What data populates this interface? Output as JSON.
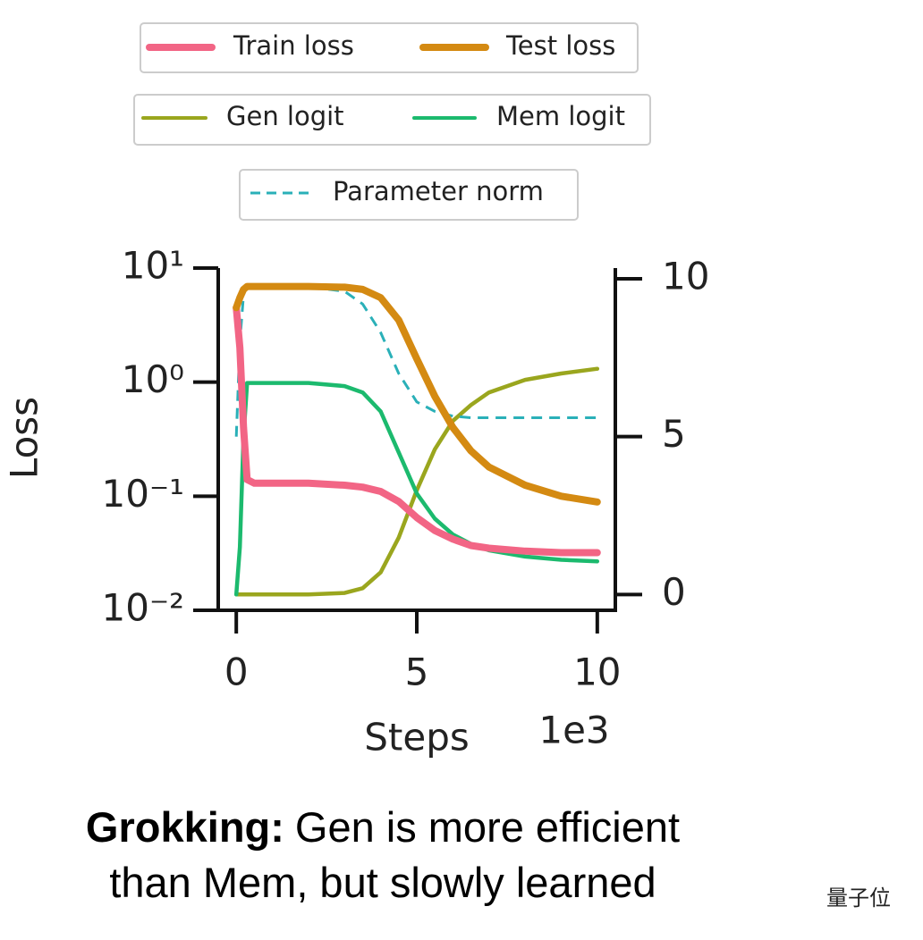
{
  "chart_data": {
    "type": "line",
    "x": [
      0,
      0.1,
      0.2,
      0.3,
      0.5,
      1,
      2,
      3,
      3.5,
      4,
      4.5,
      5,
      5.5,
      6,
      6.5,
      7,
      8,
      9,
      10
    ],
    "series": [
      {
        "name": "Train loss",
        "color": "#f26585",
        "linestyle": "solid",
        "values": [
          4.5,
          2,
          0.4,
          0.14,
          0.13,
          0.13,
          0.13,
          0.125,
          0.12,
          0.11,
          0.09,
          0.065,
          0.05,
          0.042,
          0.037,
          0.035,
          0.033,
          0.032,
          0.032
        ]
      },
      {
        "name": "Test loss",
        "color": "#d48a12",
        "linestyle": "solid",
        "values": [
          4.5,
          5.5,
          6.5,
          6.9,
          6.9,
          6.9,
          6.9,
          6.8,
          6.5,
          5.5,
          3.5,
          1.6,
          0.75,
          0.4,
          0.25,
          0.18,
          0.125,
          0.1,
          0.089
        ]
      },
      {
        "name": "Gen logit",
        "color": "#9aa61e",
        "linestyle": "solid",
        "axis": "y2",
        "values": [
          0,
          0,
          0,
          0,
          0,
          0,
          0,
          0.05,
          0.2,
          0.7,
          1.8,
          3.3,
          4.6,
          5.5,
          6.0,
          6.4,
          6.8,
          7.0,
          7.15
        ]
      },
      {
        "name": "Mem logit",
        "color": "#1cba6e",
        "linestyle": "solid",
        "axis": "y2",
        "values": [
          0,
          1.5,
          5,
          6.7,
          6.7,
          6.7,
          6.7,
          6.6,
          6.4,
          5.8,
          4.5,
          3.2,
          2.4,
          1.9,
          1.6,
          1.4,
          1.2,
          1.1,
          1.05
        ]
      },
      {
        "name": "Parameter norm",
        "color": "#2ab0b8",
        "linestyle": "dashed",
        "axis": "y2",
        "values": [
          5,
          8,
          9.5,
          9.75,
          9.77,
          9.77,
          9.75,
          9.6,
          9.2,
          8.3,
          7,
          6.1,
          5.8,
          5.65,
          5.6,
          5.6,
          5.6,
          5.6,
          5.6
        ]
      }
    ],
    "y_scale": "log",
    "xlim": [
      -0.5,
      10.5
    ],
    "xticks": [
      0,
      5,
      10
    ],
    "x_offset_label": "1e3",
    "ylim": [
      0.01,
      10
    ],
    "yticks": [
      {
        "value": 10,
        "label": "10¹"
      },
      {
        "value": 1,
        "label": "10⁰"
      },
      {
        "value": 0.1,
        "label": "10⁻¹"
      },
      {
        "value": 0.01,
        "label": "10⁻²"
      }
    ],
    "y2lim": [
      -0.5,
      10.34
    ],
    "y2ticks": [
      0,
      5,
      10
    ],
    "x_label": "Steps",
    "y_label": "Loss",
    "caption": {
      "bold": "Grokking:",
      "text": "Gen is more efficient than Mem, but slowly learned"
    },
    "watermark": "量子位"
  }
}
